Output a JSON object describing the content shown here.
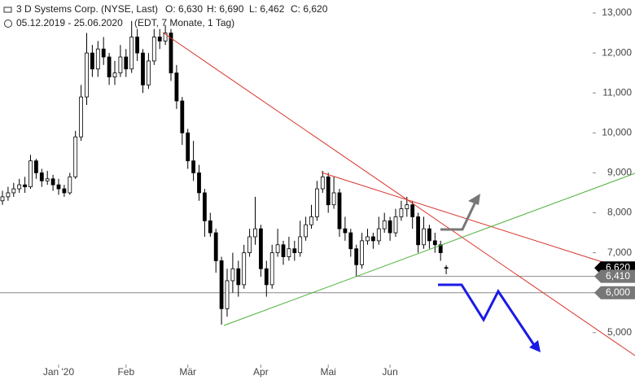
{
  "header": {
    "title": "3 D Systems Corp. (NYSE, Last)",
    "ohlc": [
      "O: 6,630",
      "H: 6,690",
      "L: 6,462",
      "C: 6,620"
    ],
    "range": "05.12.2019 - 25.06.2020",
    "info": "(EDT, 7 Monate, 1 Tag)"
  },
  "chart_data": {
    "type": "candlestick",
    "categories": [
      null,
      null,
      null,
      null,
      null,
      null,
      null,
      null,
      null,
      null,
      "Jan '20",
      null,
      null,
      null,
      null,
      null,
      null,
      null,
      null,
      null,
      null,
      null,
      "Feb",
      null,
      null,
      null,
      null,
      null,
      null,
      null,
      null,
      null,
      null,
      "Mär",
      null,
      null,
      null,
      null,
      null,
      null,
      null,
      null,
      null,
      null,
      null,
      null,
      "Apr",
      null,
      null,
      null,
      null,
      null,
      null,
      null,
      null,
      null,
      null,
      null,
      "Mai",
      null,
      null,
      null,
      null,
      null,
      null,
      null,
      null,
      null,
      null,
      "Jun",
      null,
      null,
      null,
      null,
      null,
      null,
      null,
      null,
      null,
      null
    ],
    "open": [
      8.3,
      8.4,
      8.5,
      8.6,
      8.7,
      8.65,
      9.3,
      9.0,
      8.8,
      8.85,
      8.7,
      8.6,
      8.5,
      8.9,
      9.9,
      10.9,
      12.0,
      11.6,
      12.1,
      11.9,
      11.4,
      11.5,
      11.9,
      11.6,
      12.4,
      12.0,
      11.2,
      11.8,
      12.4,
      12.3,
      12.5,
      11.5,
      10.8,
      10.0,
      9.3,
      9.0,
      8.5,
      7.8,
      7.5,
      6.8,
      5.6,
      6.3,
      6.6,
      6.2,
      7.0,
      7.4,
      7.6,
      6.6,
      6.2,
      7.0,
      7.2,
      6.9,
      7.1,
      7.0,
      7.4,
      7.7,
      7.9,
      8.6,
      8.9,
      8.2,
      8.5,
      7.6,
      7.5,
      7.1,
      6.7,
      7.3,
      7.4,
      7.3,
      7.6,
      7.8,
      7.5,
      7.9,
      8.1,
      8.2,
      7.9,
      7.2,
      7.6,
      7.3,
      7.2,
      6.63
    ],
    "high": [
      8.55,
      8.65,
      8.75,
      8.85,
      8.9,
      9.45,
      9.35,
      9.1,
      9.05,
      8.95,
      8.85,
      8.7,
      9.0,
      10.05,
      11.2,
      12.5,
      12.2,
      12.3,
      12.4,
      12.0,
      11.8,
      12.2,
      12.1,
      12.8,
      12.6,
      12.1,
      12.0,
      12.6,
      12.6,
      12.7,
      12.6,
      11.7,
      10.9,
      10.1,
      9.8,
      9.2,
      8.6,
      8.0,
      7.6,
      6.9,
      6.6,
      7.0,
      6.8,
      7.2,
      7.6,
      8.4,
      7.7,
      6.8,
      7.2,
      7.6,
      7.3,
      7.4,
      7.3,
      7.8,
      7.9,
      8.2,
      8.8,
      9.05,
      9.0,
      8.9,
      8.6,
      7.9,
      7.6,
      7.2,
      7.5,
      7.6,
      7.5,
      7.9,
      8.0,
      7.9,
      8.1,
      8.3,
      8.4,
      8.3,
      8.0,
      7.9,
      7.7,
      7.5,
      7.3,
      6.69
    ],
    "low": [
      8.2,
      8.3,
      8.4,
      8.5,
      8.5,
      8.6,
      8.85,
      8.65,
      8.7,
      8.55,
      8.45,
      8.4,
      8.45,
      8.85,
      9.8,
      10.7,
      11.4,
      11.4,
      11.7,
      11.2,
      11.2,
      11.4,
      11.4,
      11.5,
      11.8,
      11.0,
      11.1,
      11.7,
      12.1,
      12.2,
      11.3,
      10.6,
      9.7,
      9.1,
      8.8,
      8.3,
      7.4,
      7.4,
      6.5,
      5.2,
      5.4,
      6.0,
      5.9,
      6.1,
      6.9,
      7.2,
      6.4,
      5.9,
      6.1,
      6.9,
      6.7,
      6.8,
      6.8,
      6.9,
      7.3,
      7.6,
      7.8,
      8.5,
      8.0,
      8.1,
      7.4,
      7.3,
      6.9,
      6.4,
      6.6,
      7.2,
      7.1,
      7.2,
      7.5,
      7.3,
      7.4,
      7.8,
      7.9,
      7.6,
      7.0,
      7.1,
      7.1,
      7.0,
      6.8,
      6.462
    ],
    "close": [
      8.4,
      8.5,
      8.6,
      8.7,
      8.65,
      9.3,
      9.0,
      8.8,
      8.85,
      8.7,
      8.6,
      8.5,
      8.9,
      9.9,
      10.9,
      12.0,
      11.6,
      12.1,
      11.9,
      11.4,
      11.5,
      11.9,
      11.6,
      12.4,
      12.0,
      11.2,
      11.8,
      12.4,
      12.3,
      12.5,
      11.5,
      10.8,
      10.0,
      9.3,
      9.0,
      8.5,
      7.8,
      7.5,
      6.8,
      5.6,
      6.3,
      6.6,
      6.2,
      7.0,
      7.4,
      7.6,
      6.6,
      6.2,
      7.0,
      7.2,
      6.9,
      7.1,
      7.0,
      7.4,
      7.7,
      7.9,
      8.6,
      8.9,
      8.2,
      8.5,
      7.6,
      7.5,
      7.1,
      6.7,
      7.3,
      7.4,
      7.3,
      7.6,
      7.8,
      7.5,
      7.9,
      8.1,
      8.2,
      7.9,
      7.2,
      7.6,
      7.3,
      7.2,
      7.0,
      6.62
    ],
    "up_color": "#ffffff",
    "down_color": "#000000",
    "ylim": [
      3.815,
      13.326
    ],
    "yticks": [
      {
        "value": 5,
        "label": "5,000"
      },
      {
        "value": 6,
        "label": "6,000"
      },
      {
        "value": 7,
        "label": "7,000"
      },
      {
        "value": 8,
        "label": "8,000"
      },
      {
        "value": 9,
        "label": "9,000"
      },
      {
        "value": 10,
        "label": "10,000"
      },
      {
        "value": 11,
        "label": "11,000"
      },
      {
        "value": 12,
        "label": "12,000"
      },
      {
        "value": 13,
        "label": "13,000"
      }
    ],
    "price_tags": [
      {
        "value": 6.62,
        "label": "6,620",
        "color": "#000000"
      },
      {
        "value": 6.41,
        "label": "6,410",
        "color": "#777777"
      },
      {
        "value": 6.0,
        "label": "6,000",
        "color": "#777777"
      }
    ]
  }
}
